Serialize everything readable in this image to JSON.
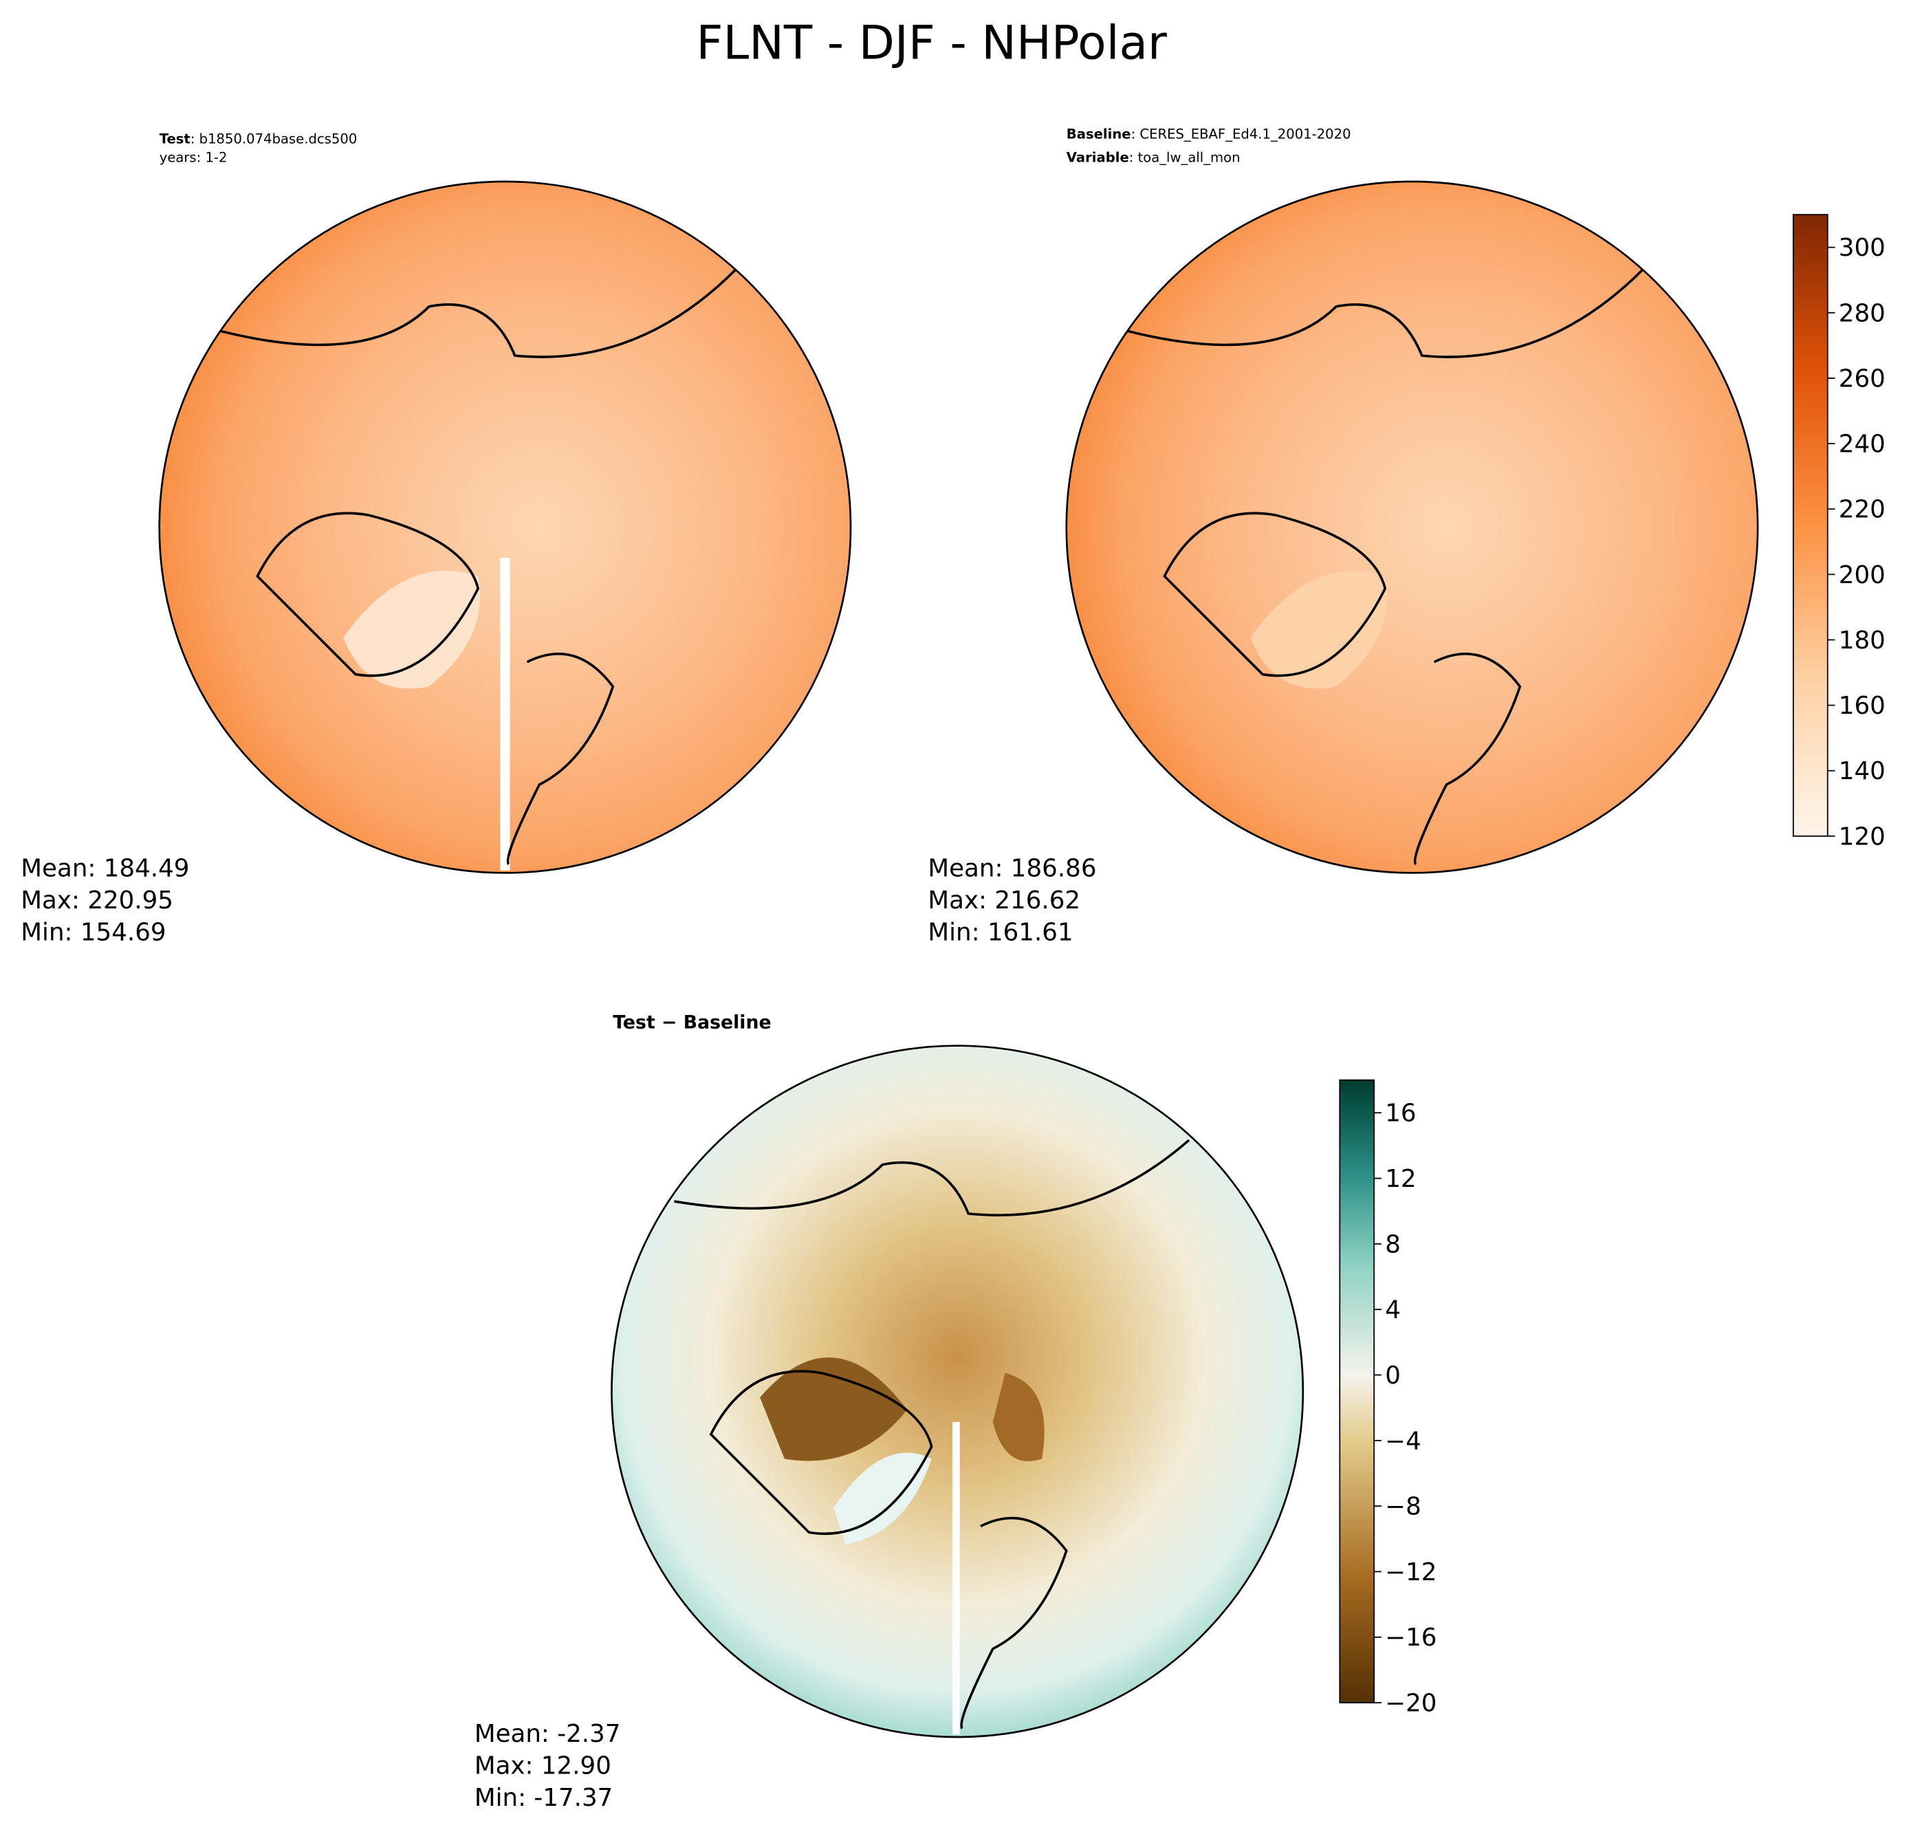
{
  "title": "FLNT - DJF - NHPolar",
  "panels": [
    {
      "label_key": "Test",
      "label_value": ": b1850.074base.dcs500",
      "label_line2": "years: 1-2",
      "stats": [
        "Mean: 184.49",
        "Max: 220.95",
        "Min: 154.69"
      ]
    },
    {
      "label_key": "Baseline",
      "label_value": ": CERES_EBAF_Ed4.1_2001-2020",
      "label_key2": "Variable",
      "label_value2": ": toa_lw_all_mon",
      "stats": [
        "Mean: 186.86",
        "Max: 216.62",
        "Min: 161.61"
      ]
    },
    {
      "label_key": "Test",
      "label_value": " − Baseline",
      "stats": [
        "Mean: -2.37",
        "Max: 12.90",
        "Min: -17.37"
      ]
    }
  ],
  "colorbars": [
    {
      "lim": [
        120,
        310
      ],
      "ticks": [
        120,
        140,
        160,
        180,
        200,
        220,
        240,
        260,
        280,
        300
      ]
    },
    {
      "lim": [
        -20,
        18
      ],
      "ticks": [
        {
          "value": -20,
          "label": "−20"
        },
        {
          "value": -16,
          "label": "−16"
        },
        {
          "value": -12,
          "label": "−12"
        },
        {
          "value": -8,
          "label": "−8"
        },
        {
          "value": -4,
          "label": "−4"
        },
        0,
        4,
        8,
        12,
        16
      ]
    }
  ]
}
